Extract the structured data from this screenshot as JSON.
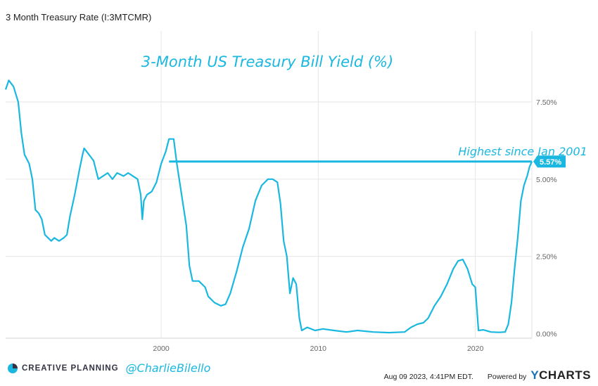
{
  "page": {
    "title": "3 Month Treasury Rate (I:3MTCMR)"
  },
  "chart_data": {
    "type": "line",
    "title": "3-Month US Treasury Bill Yield (%)",
    "xlim": [
      1990.1,
      2023.6
    ],
    "ylim": [
      -0.15,
      9.8
    ],
    "x_ticks": [
      2000,
      2010,
      2020
    ],
    "x_tick_labels": [
      "2000",
      "2010",
      "2020"
    ],
    "y_ticks": [
      0,
      2.5,
      5,
      7.5
    ],
    "y_tick_labels": [
      "0.00%",
      "2.50%",
      "5.00%",
      "7.50%"
    ],
    "grid": true,
    "line_color": "#1ab8e0",
    "series": [
      {
        "points": [
          [
            1990.1,
            7.9
          ],
          [
            1990.3,
            8.2
          ],
          [
            1990.6,
            8.0
          ],
          [
            1990.9,
            7.5
          ],
          [
            1991.1,
            6.5
          ],
          [
            1991.3,
            5.8
          ],
          [
            1991.6,
            5.5
          ],
          [
            1991.8,
            5.0
          ],
          [
            1992.0,
            4.0
          ],
          [
            1992.2,
            3.9
          ],
          [
            1992.4,
            3.7
          ],
          [
            1992.6,
            3.2
          ],
          [
            1992.8,
            3.1
          ],
          [
            1993.0,
            3.0
          ],
          [
            1993.2,
            3.1
          ],
          [
            1993.5,
            3.0
          ],
          [
            1993.8,
            3.1
          ],
          [
            1994.0,
            3.2
          ],
          [
            1994.2,
            3.8
          ],
          [
            1994.5,
            4.5
          ],
          [
            1994.8,
            5.3
          ],
          [
            1995.0,
            5.8
          ],
          [
            1995.1,
            6.0
          ],
          [
            1995.4,
            5.8
          ],
          [
            1995.7,
            5.6
          ],
          [
            1996.0,
            5.0
          ],
          [
            1996.3,
            5.1
          ],
          [
            1996.6,
            5.2
          ],
          [
            1996.9,
            5.0
          ],
          [
            1997.2,
            5.2
          ],
          [
            1997.6,
            5.1
          ],
          [
            1997.9,
            5.2
          ],
          [
            1998.2,
            5.1
          ],
          [
            1998.5,
            5.0
          ],
          [
            1998.7,
            4.5
          ],
          [
            1998.8,
            3.7
          ],
          [
            1998.9,
            4.3
          ],
          [
            1999.1,
            4.5
          ],
          [
            1999.4,
            4.6
          ],
          [
            1999.7,
            4.9
          ],
          [
            2000.0,
            5.5
          ],
          [
            2000.3,
            5.9
          ],
          [
            2000.5,
            6.3
          ],
          [
            2000.8,
            6.3
          ],
          [
            2001.0,
            5.5
          ],
          [
            2001.3,
            4.5
          ],
          [
            2001.6,
            3.5
          ],
          [
            2001.8,
            2.2
          ],
          [
            2002.0,
            1.7
          ],
          [
            2002.4,
            1.7
          ],
          [
            2002.8,
            1.5
          ],
          [
            2003.0,
            1.2
          ],
          [
            2003.4,
            1.0
          ],
          [
            2003.8,
            0.9
          ],
          [
            2004.1,
            0.95
          ],
          [
            2004.4,
            1.3
          ],
          [
            2004.8,
            2.0
          ],
          [
            2005.2,
            2.8
          ],
          [
            2005.6,
            3.4
          ],
          [
            2006.0,
            4.3
          ],
          [
            2006.4,
            4.8
          ],
          [
            2006.8,
            5.0
          ],
          [
            2007.1,
            5.0
          ],
          [
            2007.4,
            4.9
          ],
          [
            2007.6,
            4.2
          ],
          [
            2007.8,
            3.0
          ],
          [
            2008.0,
            2.5
          ],
          [
            2008.2,
            1.3
          ],
          [
            2008.4,
            1.8
          ],
          [
            2008.6,
            1.6
          ],
          [
            2008.8,
            0.5
          ],
          [
            2008.95,
            0.1
          ],
          [
            2009.3,
            0.2
          ],
          [
            2009.8,
            0.1
          ],
          [
            2010.3,
            0.15
          ],
          [
            2011.0,
            0.1
          ],
          [
            2011.8,
            0.05
          ],
          [
            2012.5,
            0.1
          ],
          [
            2013.5,
            0.05
          ],
          [
            2014.5,
            0.03
          ],
          [
            2015.5,
            0.05
          ],
          [
            2015.9,
            0.2
          ],
          [
            2016.3,
            0.3
          ],
          [
            2016.7,
            0.35
          ],
          [
            2017.0,
            0.5
          ],
          [
            2017.4,
            0.9
          ],
          [
            2017.8,
            1.2
          ],
          [
            2018.2,
            1.6
          ],
          [
            2018.6,
            2.1
          ],
          [
            2018.9,
            2.35
          ],
          [
            2019.2,
            2.4
          ],
          [
            2019.5,
            2.1
          ],
          [
            2019.8,
            1.6
          ],
          [
            2020.0,
            1.5
          ],
          [
            2020.2,
            0.1
          ],
          [
            2020.5,
            0.12
          ],
          [
            2021.0,
            0.05
          ],
          [
            2021.5,
            0.04
          ],
          [
            2021.9,
            0.05
          ],
          [
            2022.1,
            0.3
          ],
          [
            2022.3,
            1.0
          ],
          [
            2022.5,
            2.1
          ],
          [
            2022.7,
            3.1
          ],
          [
            2022.9,
            4.3
          ],
          [
            2023.1,
            4.8
          ],
          [
            2023.3,
            5.1
          ],
          [
            2023.45,
            5.4
          ],
          [
            2023.6,
            5.57
          ]
        ]
      }
    ],
    "current_value": 5.57,
    "current_value_label": "5.57%",
    "annotation": {
      "text": "Highest since Jan 2001",
      "y": 5.57,
      "x_from": 2000.5,
      "x_to": 2023.6
    }
  },
  "footer": {
    "brand_name": "CREATIVE PLANNING",
    "handle": "@CharlieBilello",
    "timestamp": "Aug 09 2023, 4:41PM EDT.",
    "powered_by": "Powered by",
    "logo_y": "Y",
    "logo_rest": "CHARTS"
  },
  "colors": {
    "accent": "#1ab8e0",
    "grid": "#e6e6e6",
    "brand_dark": "#333344",
    "ycharts_blue": "#1a6fb5"
  }
}
